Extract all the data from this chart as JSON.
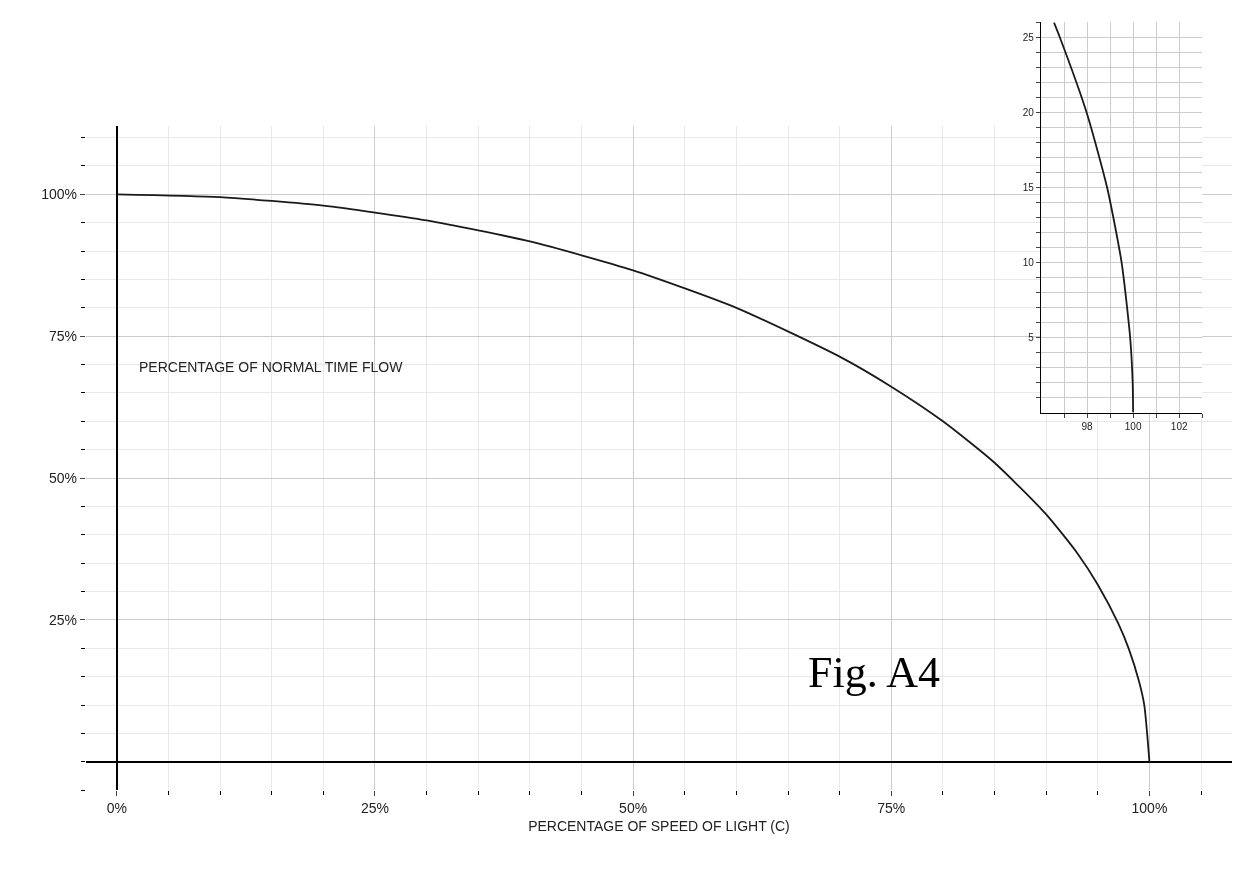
{
  "chart_data": [
    {
      "type": "line",
      "xlabel": "PERCENTAGE OF SPEED OF LIGHT (C)",
      "ylabel": "PERCENTAGE OF NORMAL TIME FLOW",
      "x": [
        0,
        10,
        20,
        30,
        40,
        50,
        60,
        70,
        75,
        80,
        85,
        90,
        93,
        95,
        97,
        98,
        99,
        99.5,
        100
      ],
      "series": [
        {
          "color": "#1a1a1a",
          "values": [
            100,
            99.5,
            98,
            95.4,
            91.7,
            86.6,
            80,
            71.4,
            66.1,
            60,
            52.7,
            43.6,
            36.8,
            31.2,
            24.3,
            19.9,
            14.1,
            10,
            0
          ]
        }
      ],
      "xlim": [
        -3,
        108
      ],
      "ylim": [
        -5,
        112
      ],
      "xticks": [
        {
          "value": 0,
          "label": "0%"
        },
        {
          "value": 25,
          "label": "25%"
        },
        {
          "value": 50,
          "label": "50%"
        },
        {
          "value": 75,
          "label": "75%"
        },
        {
          "value": 100,
          "label": "100%"
        }
      ],
      "yticks": [
        {
          "value": 25,
          "label": "25%"
        },
        {
          "value": 50,
          "label": "50%"
        },
        {
          "value": 75,
          "label": "75%"
        },
        {
          "value": 100,
          "label": "100%"
        }
      ],
      "grid": true,
      "marker": "none",
      "line_style": "solid",
      "annotations": [
        "Fig. A4"
      ]
    },
    {
      "type": "line",
      "x": [
        100,
        99.98,
        99.87,
        99.5,
        98.87,
        97.98,
        96.82,
        96.56
      ],
      "series": [
        {
          "color": "#1a1a1a",
          "values": [
            0,
            2,
            5,
            10,
            15,
            20,
            25,
            26
          ]
        }
      ],
      "xlim": [
        96,
        103
      ],
      "ylim": [
        0,
        26
      ],
      "xticks": [
        {
          "value": 97,
          "label": null
        },
        98,
        {
          "value": 99,
          "label": null
        },
        100,
        {
          "value": 101,
          "label": null
        },
        102,
        {
          "value": 103,
          "label": null
        }
      ],
      "yticks": [
        {
          "value": 1,
          "label": null
        },
        {
          "value": 2,
          "label": null
        },
        {
          "value": 3,
          "label": null
        },
        {
          "value": 4,
          "label": null
        },
        5,
        {
          "value": 6,
          "label": null
        },
        {
          "value": 7,
          "label": null
        },
        {
          "value": 8,
          "label": null
        },
        {
          "value": 9,
          "label": null
        },
        10,
        {
          "value": 11,
          "label": null
        },
        {
          "value": 12,
          "label": null
        },
        {
          "value": 13,
          "label": null
        },
        {
          "value": 14,
          "label": null
        },
        15,
        {
          "value": 16,
          "label": null
        },
        {
          "value": 17,
          "label": null
        },
        {
          "value": 18,
          "label": null
        },
        {
          "value": 19,
          "label": null
        },
        20,
        {
          "value": 21,
          "label": null
        },
        {
          "value": 22,
          "label": null
        },
        {
          "value": 23,
          "label": null
        },
        {
          "value": 24,
          "label": null
        },
        25,
        {
          "value": 26,
          "label": null
        }
      ],
      "grid": true,
      "marker": "none",
      "line_style": "solid"
    }
  ]
}
